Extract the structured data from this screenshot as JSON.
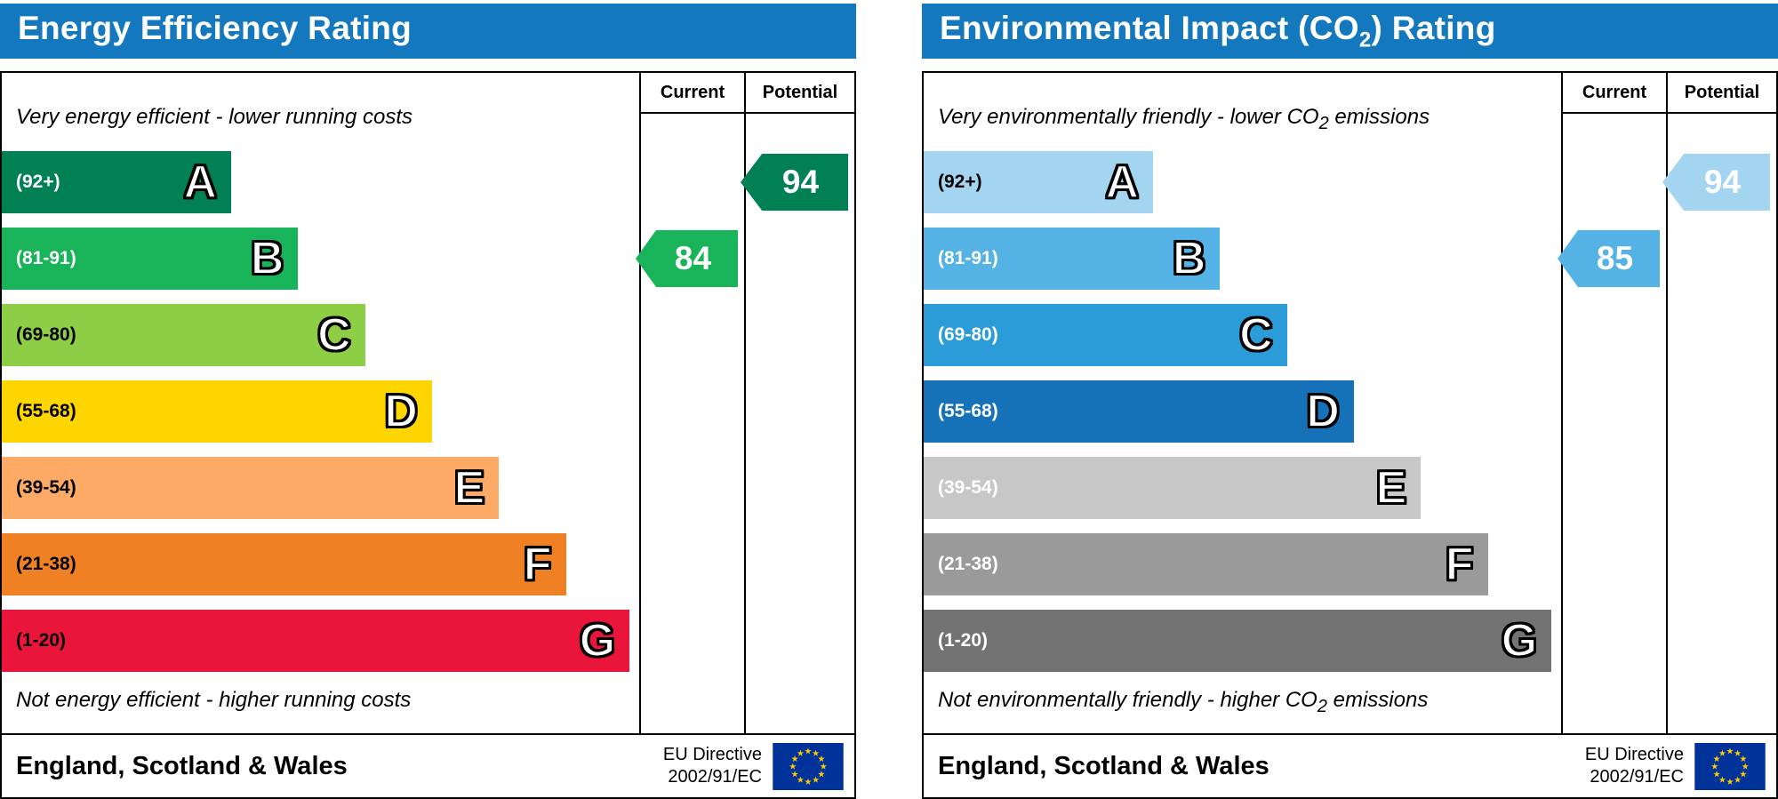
{
  "colors": {
    "header_blue": "#1478be",
    "eu_flag_blue": "#003399",
    "eu_star_yellow": "#ffcc00"
  },
  "chart_data": [
    {
      "type": "bar",
      "title": "Energy Efficiency Rating",
      "categories": [
        "A (92+)",
        "B (81-91)",
        "C (69-80)",
        "D (55-68)",
        "E (39-54)",
        "F (21-38)",
        "G (1-20)"
      ],
      "series": [
        {
          "name": "Current",
          "values": [
            84
          ],
          "band": "B"
        },
        {
          "name": "Potential",
          "values": [
            94
          ],
          "band": "A"
        }
      ],
      "scale": [
        1,
        100
      ],
      "top_annotation": "Very energy efficient - lower running costs",
      "bottom_annotation": "Not energy efficient - higher running costs",
      "region": "England, Scotland & Wales",
      "directive": "EU Directive 2002/91/EC"
    },
    {
      "type": "bar",
      "title": "Environmental Impact (CO2) Rating",
      "categories": [
        "A (92+)",
        "B (81-91)",
        "C (69-80)",
        "D (55-68)",
        "E (39-54)",
        "F (21-38)",
        "G (1-20)"
      ],
      "series": [
        {
          "name": "Current",
          "values": [
            85
          ],
          "band": "B"
        },
        {
          "name": "Potential",
          "values": [
            94
          ],
          "band": "A"
        }
      ],
      "scale": [
        1,
        100
      ],
      "top_annotation": "Very environmentally friendly - lower CO2 emissions",
      "bottom_annotation": "Not environmentally friendly - higher CO2 emissions",
      "region": "England, Scotland & Wales",
      "directive": "EU Directive 2002/91/EC"
    }
  ],
  "panels": [
    {
      "title": {
        "pre": "Energy Efficiency Rating",
        "sub": "",
        "post": ""
      },
      "columns": [
        "Current",
        "Potential"
      ],
      "top_note": {
        "pre": "Very energy efficient - lower running costs",
        "sub": "",
        "post": ""
      },
      "bottom_note": {
        "pre": "Not energy efficient - higher running costs",
        "sub": "",
        "post": ""
      },
      "bands": [
        {
          "letter": "A",
          "range": "(92+)",
          "color": "#008054",
          "width": "36%",
          "text_color": "#ffffff"
        },
        {
          "letter": "B",
          "range": "(81-91)",
          "color": "#19b459",
          "width": "46.5%",
          "text_color": "#ffffff"
        },
        {
          "letter": "C",
          "range": "(69-80)",
          "color": "#8dce46",
          "width": "57%",
          "text_color": "#000000"
        },
        {
          "letter": "D",
          "range": "(55-68)",
          "color": "#ffd500",
          "width": "67.5%",
          "text_color": "#000000"
        },
        {
          "letter": "E",
          "range": "(39-54)",
          "color": "#fcaa65",
          "width": "78%",
          "text_color": "#000000"
        },
        {
          "letter": "F",
          "range": "(21-38)",
          "color": "#ef8023",
          "width": "88.5%",
          "text_color": "#000000"
        },
        {
          "letter": "G",
          "range": "(1-20)",
          "color": "#e9153b",
          "width": "98.5%",
          "text_color": "#000000"
        }
      ],
      "current": {
        "label": "84",
        "color": "#19b459",
        "band_index": 1
      },
      "potential": {
        "label": "94",
        "color": "#008054",
        "band_index": 0
      },
      "footer": {
        "region": "England, Scotland & Wales",
        "directive_line1": "EU Directive",
        "directive_line2": "2002/91/EC"
      }
    },
    {
      "title": {
        "pre": "Environmental Impact (CO",
        "sub": "2",
        "post": ") Rating"
      },
      "columns": [
        "Current",
        "Potential"
      ],
      "top_note": {
        "pre": "Very environmentally friendly - lower CO",
        "sub": "2",
        "post": " emissions"
      },
      "bottom_note": {
        "pre": "Not environmentally friendly - higher CO",
        "sub": "2",
        "post": " emissions"
      },
      "bands": [
        {
          "letter": "A",
          "range": "(92+)",
          "color": "#a3d5f0",
          "width": "36%",
          "text_color": "#000000"
        },
        {
          "letter": "B",
          "range": "(81-91)",
          "color": "#55b2e4",
          "width": "46.5%",
          "text_color": "#ffffff"
        },
        {
          "letter": "C",
          "range": "(69-80)",
          "color": "#2b9cd8",
          "width": "57%",
          "text_color": "#ffffff"
        },
        {
          "letter": "D",
          "range": "(55-68)",
          "color": "#1672b8",
          "width": "67.5%",
          "text_color": "#ffffff"
        },
        {
          "letter": "E",
          "range": "(39-54)",
          "color": "#c7c7c7",
          "width": "78%",
          "text_color": "#ffffff"
        },
        {
          "letter": "F",
          "range": "(21-38)",
          "color": "#9a9a9a",
          "width": "88.5%",
          "text_color": "#ffffff"
        },
        {
          "letter": "G",
          "range": "(1-20)",
          "color": "#737373",
          "width": "98.5%",
          "text_color": "#ffffff"
        }
      ],
      "current": {
        "label": "85",
        "color": "#55b2e4",
        "band_index": 1
      },
      "potential": {
        "label": "94",
        "color": "#a3d5f0",
        "band_index": 0
      },
      "footer": {
        "region": "England, Scotland & Wales",
        "directive_line1": "EU Directive",
        "directive_line2": "2002/91/EC"
      }
    }
  ]
}
